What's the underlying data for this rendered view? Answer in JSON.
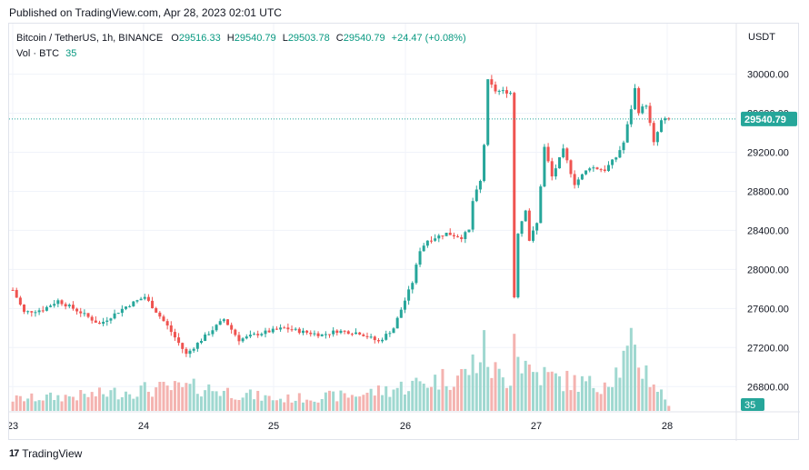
{
  "published": "Published on TradingView.com, Apr 28, 2023 02:01 UTC",
  "legend": {
    "symbol": "Bitcoin / TetherUS, 1h, BINANCE",
    "o_label": "O",
    "o": "29516.33",
    "h_label": "H",
    "h": "29540.79",
    "l_label": "L",
    "l": "29503.78",
    "c_label": "C",
    "c": "29540.79",
    "change": "+24.47 (+0.08%)"
  },
  "volume_legend": {
    "label": "Vol · BTC",
    "value": "35"
  },
  "footer": {
    "logo": "17",
    "brand": "TradingView"
  },
  "colors": {
    "up": "#26a69a",
    "down": "#ef5350",
    "up_vol": "#9fd8d0",
    "down_vol": "#f4b3b0",
    "price_line": "#26a69a"
  },
  "chart_data": {
    "type": "candlestick",
    "currency": "USDT",
    "last_price": "29540.79",
    "last_volume": "35",
    "x_ticks": [
      "23",
      "24",
      "25",
      "26",
      "27",
      "28"
    ],
    "y_ticks": [
      "30000.00",
      "29600.00",
      "29200.00",
      "28800.00",
      "28400.00",
      "28000.00",
      "27600.00",
      "27200.00",
      "26800.00"
    ],
    "ylim": [
      26700,
      30080
    ],
    "anchors": [
      [
        0,
        27790
      ],
      [
        3,
        27560
      ],
      [
        8,
        27590
      ],
      [
        12,
        27680
      ],
      [
        18,
        27560
      ],
      [
        23,
        27440
      ],
      [
        30,
        27620
      ],
      [
        35,
        27720
      ],
      [
        41,
        27420
      ],
      [
        46,
        27130
      ],
      [
        50,
        27280
      ],
      [
        56,
        27490
      ],
      [
        60,
        27280
      ],
      [
        65,
        27340
      ],
      [
        72,
        27400
      ],
      [
        77,
        27360
      ],
      [
        82,
        27330
      ],
      [
        86,
        27370
      ],
      [
        92,
        27350
      ],
      [
        97,
        27260
      ],
      [
        101,
        27400
      ],
      [
        103,
        27590
      ],
      [
        106,
        27870
      ],
      [
        108,
        28200
      ],
      [
        110,
        28300
      ],
      [
        115,
        28370
      ],
      [
        119,
        28330
      ],
      [
        121,
        28400
      ],
      [
        122,
        28700
      ],
      [
        124,
        28900
      ],
      [
        125,
        29280
      ],
      [
        126,
        29930
      ],
      [
        128,
        29830
      ],
      [
        131,
        29820
      ],
      [
        132,
        29810
      ],
      [
        133,
        27720
      ],
      [
        134,
        28380
      ],
      [
        136,
        28620
      ],
      [
        137,
        28300
      ],
      [
        139,
        28470
      ],
      [
        141,
        29250
      ],
      [
        143,
        28950
      ],
      [
        146,
        29220
      ],
      [
        149,
        28880
      ],
      [
        153,
        29050
      ],
      [
        157,
        29020
      ],
      [
        160,
        29150
      ],
      [
        162,
        29300
      ],
      [
        164,
        29650
      ],
      [
        165,
        29850
      ],
      [
        166,
        29620
      ],
      [
        168,
        29690
      ],
      [
        170,
        29290
      ],
      [
        172,
        29520
      ],
      [
        174,
        29540
      ]
    ],
    "volume_anchors": [
      [
        0,
        60
      ],
      [
        20,
        80
      ],
      [
        35,
        110
      ],
      [
        50,
        120
      ],
      [
        70,
        60
      ],
      [
        90,
        80
      ],
      [
        100,
        110
      ],
      [
        110,
        150
      ],
      [
        120,
        190
      ],
      [
        125,
        310
      ],
      [
        127,
        220
      ],
      [
        130,
        160
      ],
      [
        132,
        180
      ],
      [
        133,
        540
      ],
      [
        134,
        280
      ],
      [
        138,
        200
      ],
      [
        145,
        160
      ],
      [
        155,
        130
      ],
      [
        160,
        200
      ],
      [
        164,
        310
      ],
      [
        168,
        200
      ],
      [
        174,
        35
      ]
    ]
  }
}
